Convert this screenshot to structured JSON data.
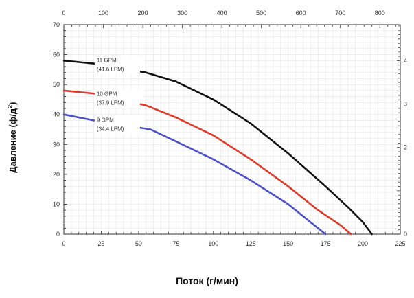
{
  "chart_data": {
    "type": "line",
    "title": "",
    "xlabel": "Поток (г/мин)",
    "ylabel_main": "Давление (ф/д",
    "ylabel_sup": "2",
    "ylabel_close": ")",
    "xlim": [
      0,
      225
    ],
    "ylim": [
      0,
      70
    ],
    "x_ticks": [
      0,
      25,
      50,
      75,
      100,
      125,
      150,
      175,
      200,
      225
    ],
    "y_ticks": [
      0,
      10,
      20,
      30,
      40,
      50,
      60,
      70
    ],
    "top_axis": {
      "lim": [
        0,
        851.7
      ],
      "ticks": [
        0,
        100,
        200,
        300,
        400,
        500,
        600,
        700,
        800
      ]
    },
    "right_axis": {
      "lim": [
        0,
        4.83
      ],
      "ticks": [
        0,
        1,
        2,
        3,
        4
      ],
      "tick_labels": [
        "0",
        "",
        "2",
        "3",
        "4"
      ]
    },
    "grid": true,
    "series": [
      {
        "color": "#111111",
        "x": [
          0,
          20,
          55,
          75,
          100,
          125,
          150,
          175,
          190,
          200,
          206
        ],
        "y": [
          58,
          57,
          54,
          51,
          45,
          37,
          27,
          16,
          9,
          4,
          0
        ]
      },
      {
        "color": "#e03a2a",
        "x": [
          0,
          20,
          55,
          75,
          100,
          125,
          150,
          170,
          185,
          192
        ],
        "y": [
          48,
          47,
          43,
          39,
          33,
          25,
          16,
          8,
          3,
          0
        ]
      },
      {
        "color": "#4b4fc8",
        "x": [
          0,
          20,
          58,
          75,
          100,
          125,
          150,
          165,
          175
        ],
        "y": [
          40,
          38,
          35,
          31,
          25,
          18,
          10,
          4,
          0
        ]
      }
    ],
    "annotations": [
      {
        "lines": [
          "11 GPM",
          "(41.6 LPM)"
        ],
        "x": 22,
        "y": 57.5
      },
      {
        "lines": [
          "10 GPM",
          "(37.9 LPM)"
        ],
        "x": 22,
        "y": 46.2
      },
      {
        "lines": [
          "9 GPM",
          "(34.4 LPM)"
        ],
        "x": 22,
        "y": 37.5
      }
    ]
  }
}
